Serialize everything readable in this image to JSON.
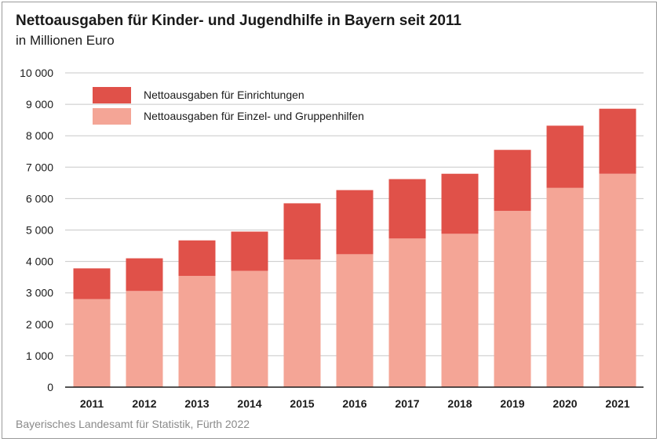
{
  "chart_data": {
    "type": "bar",
    "stacked": true,
    "title": "Nettoausgaben für Kinder- und Jugendhilfe in Bayern seit 2011",
    "subtitle": "in Millionen Euro",
    "categories": [
      "2011",
      "2012",
      "2013",
      "2014",
      "2015",
      "2016",
      "2017",
      "2018",
      "2019",
      "2020",
      "2021"
    ],
    "series": [
      {
        "name": "Nettoausgaben für Einzel- und Gruppenhilfen",
        "color": "#f4a596",
        "values": [
          2800,
          3060,
          3540,
          3700,
          4060,
          4230,
          4730,
          4880,
          5610,
          6340,
          6790
        ]
      },
      {
        "name": "Nettoausgaben für Einrichtungen",
        "color": "#e05149",
        "values": [
          980,
          1040,
          1130,
          1250,
          1790,
          2040,
          1890,
          1910,
          1940,
          1980,
          2070
        ]
      }
    ],
    "legend_order": [
      1,
      0
    ],
    "ylim": [
      0,
      10000
    ],
    "yticks": [
      0,
      1000,
      2000,
      3000,
      4000,
      5000,
      6000,
      7000,
      8000,
      9000,
      10000
    ],
    "ytick_labels": [
      "0",
      "1 000",
      "2 000",
      "3 000",
      "4 000",
      "5 000",
      "6 000",
      "7 000",
      "8 000",
      "9 000",
      "10 000"
    ],
    "grid": true,
    "legend_position": "top-left"
  },
  "source": "Bayerisches Landesamt für Statistik, Fürth 2022"
}
